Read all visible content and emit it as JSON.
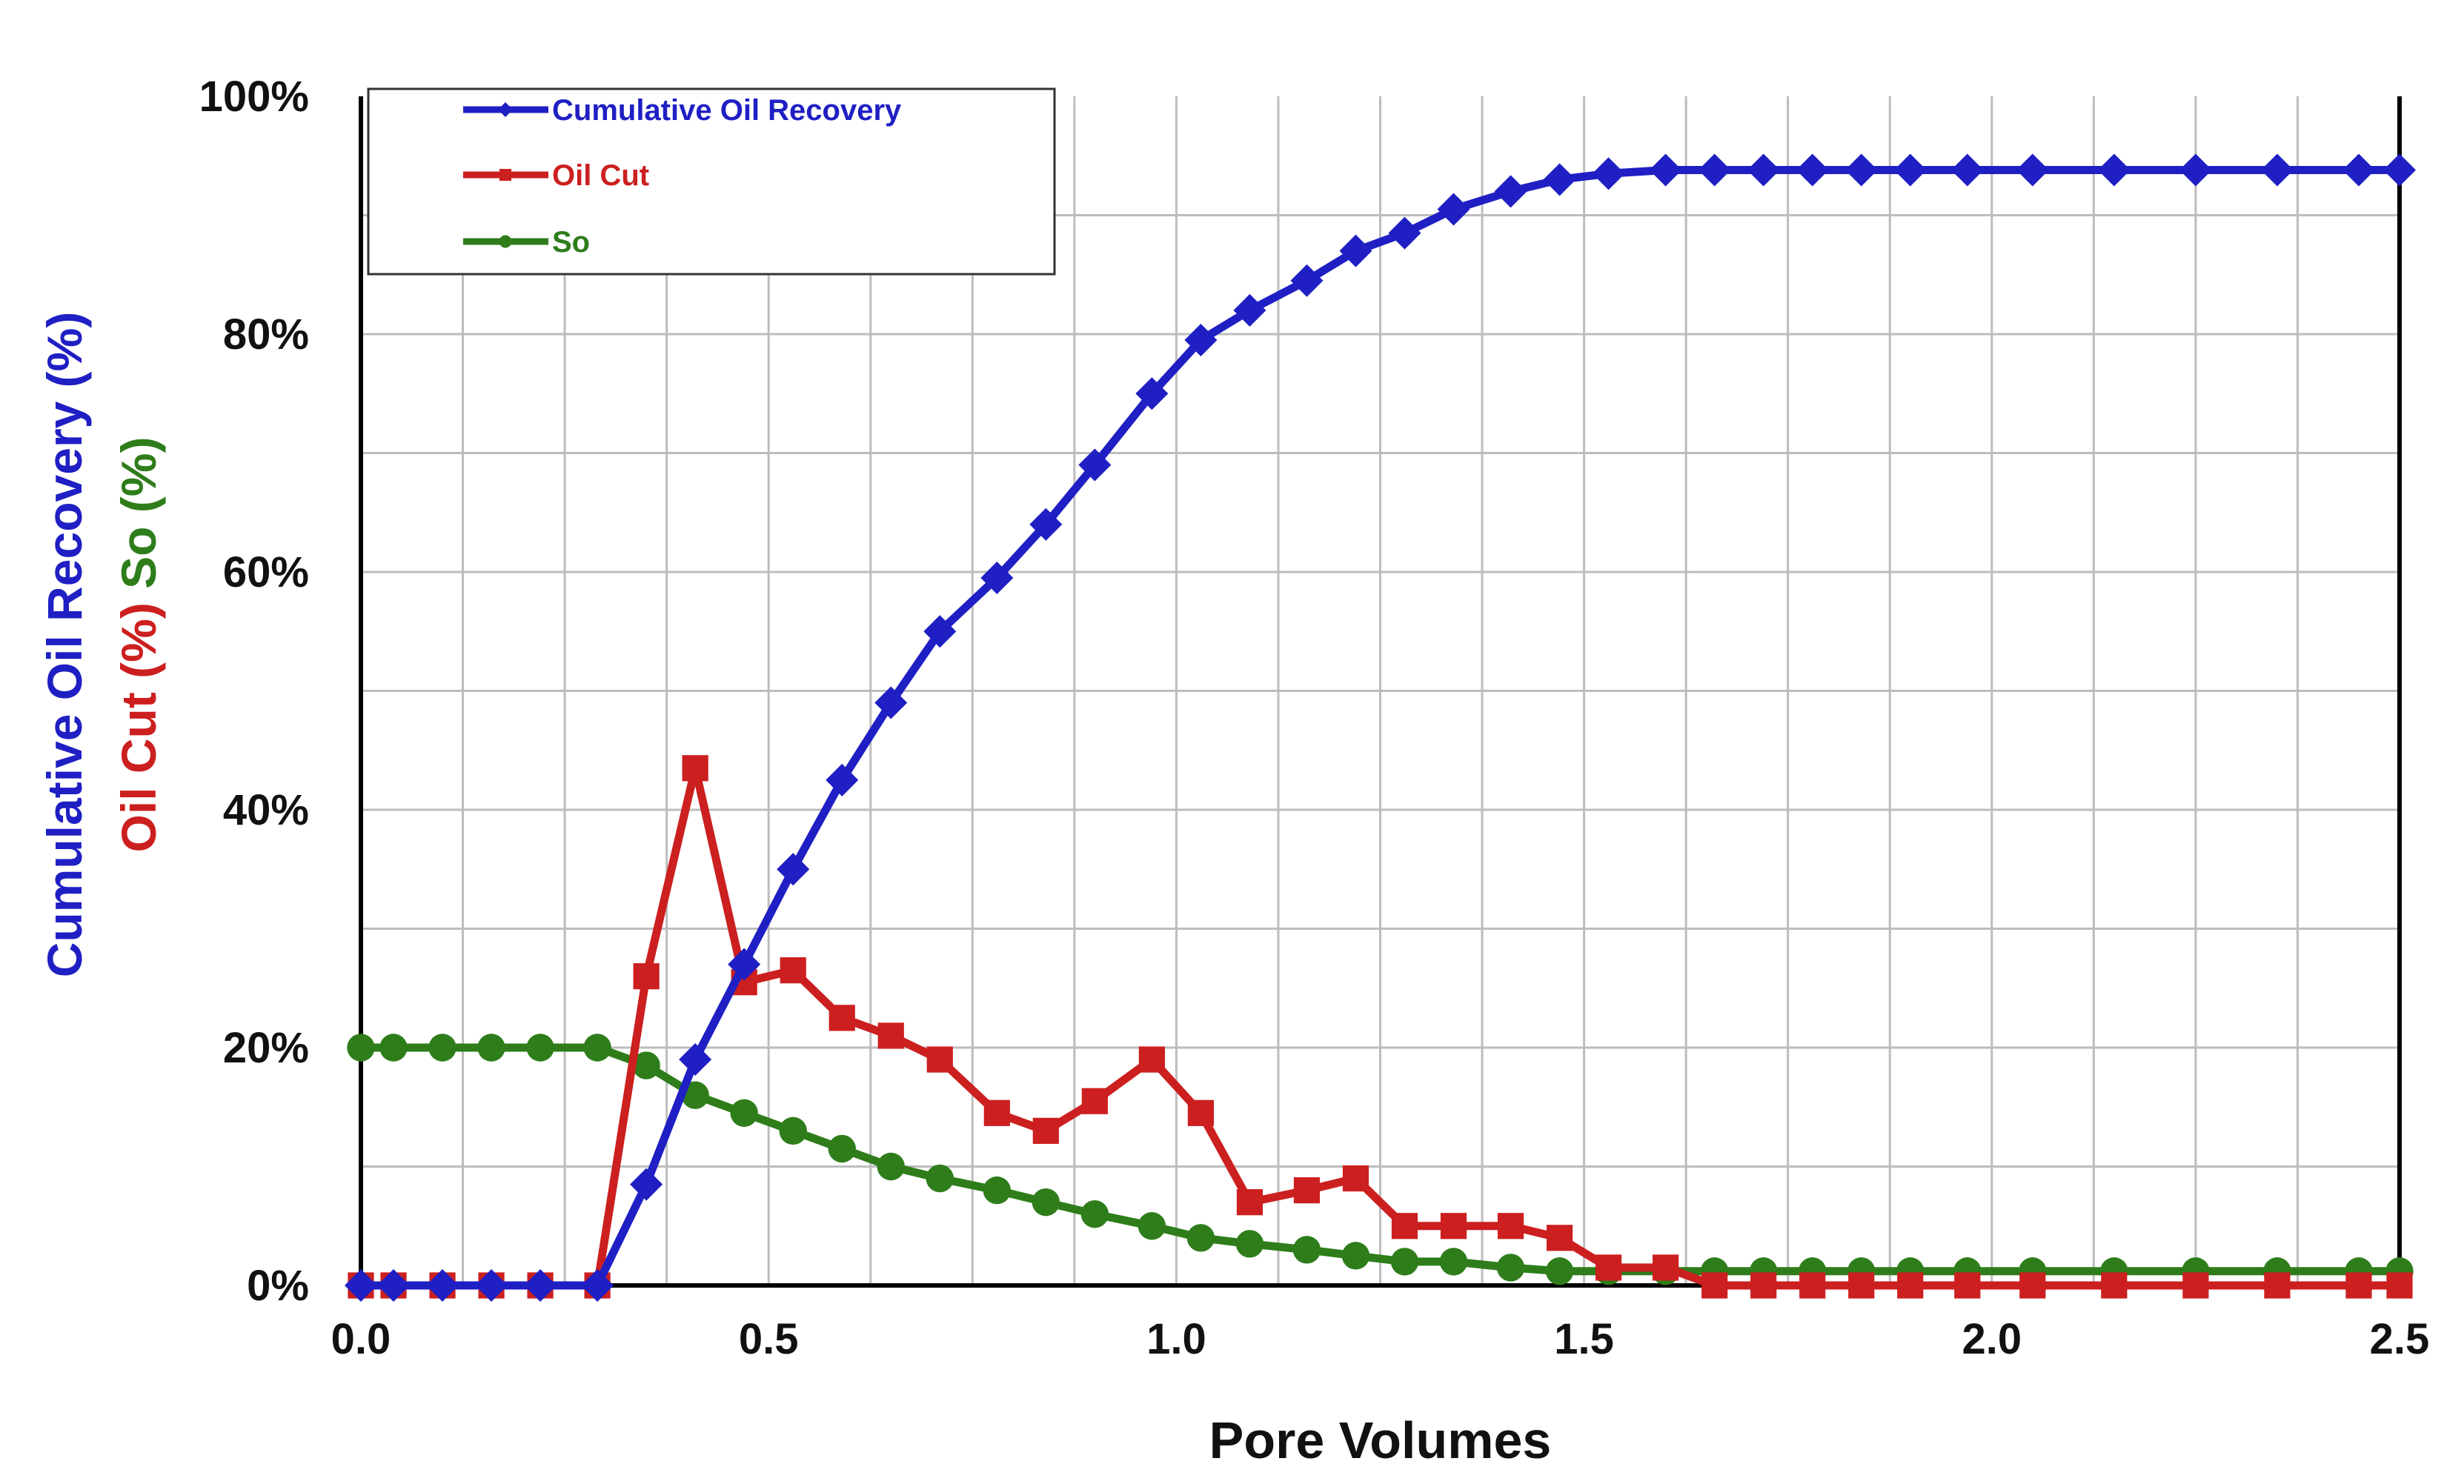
{
  "chart_data": {
    "type": "line",
    "title": "",
    "xlabel": "Pore Volumes",
    "ylabel_parts": [
      {
        "text": "Cumulative Oil Recovery (%)",
        "color": "#1f1fc4"
      },
      {
        "text": "Oil Cut (%)",
        "color": "#cc1f1f"
      },
      {
        "text": "So (%)",
        "color": "#2e7d1a"
      }
    ],
    "xlim": [
      0.0,
      2.5
    ],
    "ylim": [
      0,
      100
    ],
    "xticks": [
      "0.0",
      "0.5",
      "1.0",
      "1.5",
      "2.0",
      "2.5"
    ],
    "yticks": [
      "0%",
      "20%",
      "40%",
      "60%",
      "80%",
      "100%"
    ],
    "grid": true,
    "legend_position": "top-left",
    "series": [
      {
        "name": "Cumulative Oil Recovery",
        "color": "#1f1fc4",
        "marker": "diamond",
        "points": [
          [
            0.0,
            0
          ],
          [
            0.04,
            0
          ],
          [
            0.1,
            0
          ],
          [
            0.16,
            0
          ],
          [
            0.22,
            0
          ],
          [
            0.29,
            0
          ],
          [
            0.35,
            8.5
          ],
          [
            0.41,
            19
          ],
          [
            0.47,
            27
          ],
          [
            0.53,
            35
          ],
          [
            0.59,
            42.5
          ],
          [
            0.65,
            49
          ],
          [
            0.71,
            55
          ],
          [
            0.78,
            59.5
          ],
          [
            0.84,
            64
          ],
          [
            0.9,
            69
          ],
          [
            0.97,
            75
          ],
          [
            1.03,
            79.5
          ],
          [
            1.09,
            82
          ],
          [
            1.16,
            84.5
          ],
          [
            1.22,
            87
          ],
          [
            1.28,
            88.5
          ],
          [
            1.34,
            90.5
          ],
          [
            1.41,
            92
          ],
          [
            1.47,
            93
          ],
          [
            1.53,
            93.5
          ],
          [
            1.6,
            93.8
          ],
          [
            1.66,
            93.8
          ],
          [
            1.72,
            93.8
          ],
          [
            1.78,
            93.8
          ],
          [
            1.84,
            93.8
          ],
          [
            1.9,
            93.8
          ],
          [
            1.97,
            93.8
          ],
          [
            2.05,
            93.8
          ],
          [
            2.15,
            93.8
          ],
          [
            2.25,
            93.8
          ],
          [
            2.35,
            93.8
          ],
          [
            2.45,
            93.8
          ],
          [
            2.5,
            93.8
          ]
        ]
      },
      {
        "name": "Oil Cut",
        "color": "#cc1f1f",
        "marker": "square",
        "points": [
          [
            0.0,
            0
          ],
          [
            0.04,
            0
          ],
          [
            0.1,
            0
          ],
          [
            0.16,
            0
          ],
          [
            0.22,
            0
          ],
          [
            0.29,
            0
          ],
          [
            0.35,
            26
          ],
          [
            0.41,
            43.5
          ],
          [
            0.47,
            25.5
          ],
          [
            0.53,
            26.5
          ],
          [
            0.59,
            22.5
          ],
          [
            0.65,
            21
          ],
          [
            0.71,
            19
          ],
          [
            0.78,
            14.5
          ],
          [
            0.84,
            13
          ],
          [
            0.9,
            15.5
          ],
          [
            0.97,
            19
          ],
          [
            1.03,
            14.5
          ],
          [
            1.09,
            7
          ],
          [
            1.16,
            8
          ],
          [
            1.22,
            9
          ],
          [
            1.28,
            5
          ],
          [
            1.34,
            5
          ],
          [
            1.41,
            5
          ],
          [
            1.47,
            4
          ],
          [
            1.53,
            1.5
          ],
          [
            1.6,
            1.5
          ],
          [
            1.66,
            0
          ],
          [
            1.72,
            0
          ],
          [
            1.78,
            0
          ],
          [
            1.84,
            0
          ],
          [
            1.9,
            0
          ],
          [
            1.97,
            0
          ],
          [
            2.05,
            0
          ],
          [
            2.15,
            0
          ],
          [
            2.25,
            0
          ],
          [
            2.35,
            0
          ],
          [
            2.45,
            0
          ],
          [
            2.5,
            0
          ]
        ]
      },
      {
        "name": "So",
        "color": "#2e7d1a",
        "marker": "circle",
        "points": [
          [
            0.0,
            20
          ],
          [
            0.04,
            20
          ],
          [
            0.1,
            20
          ],
          [
            0.16,
            20
          ],
          [
            0.22,
            20
          ],
          [
            0.29,
            20
          ],
          [
            0.35,
            18.5
          ],
          [
            0.41,
            16
          ],
          [
            0.47,
            14.5
          ],
          [
            0.53,
            13
          ],
          [
            0.59,
            11.5
          ],
          [
            0.65,
            10
          ],
          [
            0.71,
            9
          ],
          [
            0.78,
            8
          ],
          [
            0.84,
            7
          ],
          [
            0.9,
            6
          ],
          [
            0.97,
            5
          ],
          [
            1.03,
            4
          ],
          [
            1.09,
            3.5
          ],
          [
            1.16,
            3
          ],
          [
            1.22,
            2.5
          ],
          [
            1.28,
            2
          ],
          [
            1.34,
            2
          ],
          [
            1.41,
            1.5
          ],
          [
            1.47,
            1.2
          ],
          [
            1.53,
            1.2
          ],
          [
            1.6,
            1.2
          ],
          [
            1.66,
            1.2
          ],
          [
            1.72,
            1.2
          ],
          [
            1.78,
            1.2
          ],
          [
            1.84,
            1.2
          ],
          [
            1.9,
            1.2
          ],
          [
            1.97,
            1.2
          ],
          [
            2.05,
            1.2
          ],
          [
            2.15,
            1.2
          ],
          [
            2.25,
            1.2
          ],
          [
            2.35,
            1.2
          ],
          [
            2.45,
            1.2
          ],
          [
            2.5,
            1.2
          ]
        ]
      }
    ]
  }
}
